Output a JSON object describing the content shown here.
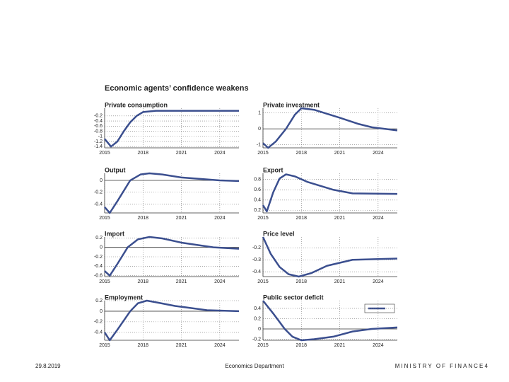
{
  "header": {
    "title": "Economic agents’ confidence weakens"
  },
  "footer": {
    "date": "29.8.2019",
    "department": "Economics Department",
    "organization": "MINISTRY OF FINANCE",
    "page": "4"
  },
  "chart_data": [
    {
      "type": "line",
      "title": "Private consumption",
      "color": "#3b4f8f",
      "x": [
        2015,
        2015.5,
        2016,
        2016.5,
        2017,
        2017.5,
        2018,
        2019,
        2021,
        2024,
        2025.5
      ],
      "values": [
        -1.1,
        -1.4,
        -1.2,
        -0.8,
        -0.45,
        -0.2,
        -0.05,
        0,
        0,
        0,
        0
      ],
      "xlim": [
        2015,
        2025.5
      ],
      "xticks": [
        2015,
        2018,
        2021,
        2024
      ],
      "ylim": [
        -1.45,
        0.1
      ],
      "yticks": [
        -0.2,
        -0.4,
        -0.6,
        -0.8,
        -1,
        -1.2,
        -1.4
      ],
      "grid": true
    },
    {
      "type": "line",
      "title": "Private investment",
      "color": "#3b4f8f",
      "x": [
        2015,
        2015.4,
        2016,
        2016.8,
        2017.5,
        2018,
        2019,
        2021,
        2022.5,
        2023.5,
        2025.5
      ],
      "values": [
        -0.9,
        -1.2,
        -0.8,
        0,
        0.9,
        1.3,
        1.2,
        0.7,
        0.3,
        0.1,
        -0.1
      ],
      "xlim": [
        2015,
        2025.5
      ],
      "xticks": [
        2015,
        2018,
        2021,
        2024
      ],
      "ylim": [
        -1.2,
        1.3
      ],
      "yticks": [
        1,
        0,
        -1
      ],
      "grid": true
    },
    {
      "type": "line",
      "title": "Output",
      "color": "#3b4f8f",
      "x": [
        2015,
        2015.4,
        2016,
        2017,
        2017.8,
        2018.5,
        2019.5,
        2021,
        2024,
        2025.5
      ],
      "values": [
        -0.45,
        -0.55,
        -0.35,
        0,
        0.1,
        0.12,
        0.1,
        0.05,
        0,
        -0.01
      ],
      "xlim": [
        2015,
        2025.5
      ],
      "xticks": [
        2015,
        2018,
        2021,
        2024
      ],
      "ylim": [
        -0.55,
        0.12
      ],
      "yticks": [
        0,
        -0.2,
        -0.4
      ],
      "grid": true
    },
    {
      "type": "line",
      "title": "Export",
      "color": "#3b4f8f",
      "x": [
        2015,
        2015.3,
        2015.8,
        2016.3,
        2016.8,
        2017.5,
        2018.5,
        2020.5,
        2022,
        2025.5
      ],
      "values": [
        0.3,
        0.18,
        0.55,
        0.82,
        0.9,
        0.86,
        0.75,
        0.6,
        0.53,
        0.52
      ],
      "xlim": [
        2015,
        2025.5
      ],
      "xticks": [
        2015,
        2018,
        2021,
        2024
      ],
      "ylim": [
        0.15,
        0.92
      ],
      "yticks": [
        0.8,
        0.6,
        0.4,
        0.2
      ],
      "grid": true
    },
    {
      "type": "line",
      "title": "Import",
      "color": "#3b4f8f",
      "x": [
        2015,
        2015.4,
        2016,
        2016.8,
        2017.6,
        2018.5,
        2019.5,
        2021,
        2023.5,
        2025.5
      ],
      "values": [
        -0.5,
        -0.6,
        -0.35,
        0,
        0.17,
        0.22,
        0.19,
        0.1,
        0,
        -0.03
      ],
      "xlim": [
        2015,
        2025.5
      ],
      "xticks": [
        2015,
        2018,
        2021,
        2024
      ],
      "ylim": [
        -0.62,
        0.22
      ],
      "yticks": [
        0.2,
        0,
        -0.2,
        -0.4,
        -0.6
      ],
      "grid": true
    },
    {
      "type": "line",
      "title": "Price level",
      "color": "#3b4f8f",
      "x": [
        2015,
        2015.6,
        2016.3,
        2017,
        2017.8,
        2018.8,
        2020,
        2022,
        2025.5
      ],
      "values": [
        -0.11,
        -0.25,
        -0.36,
        -0.42,
        -0.44,
        -0.41,
        -0.35,
        -0.3,
        -0.29
      ],
      "xlim": [
        2015,
        2025.5
      ],
      "xticks": [
        2015,
        2018,
        2021,
        2024
      ],
      "ylim": [
        -0.44,
        -0.11
      ],
      "yticks": [
        -0.2,
        -0.3,
        -0.4
      ],
      "grid": true
    },
    {
      "type": "line",
      "title": "Employment",
      "color": "#3b4f8f",
      "x": [
        2015,
        2015.4,
        2016,
        2017,
        2017.6,
        2018.3,
        2019,
        2020.5,
        2023,
        2025.5
      ],
      "values": [
        -0.4,
        -0.55,
        -0.35,
        0,
        0.15,
        0.2,
        0.17,
        0.1,
        0.02,
        0
      ],
      "xlim": [
        2015,
        2025.5
      ],
      "xticks": [
        2015,
        2018,
        2021,
        2024
      ],
      "ylim": [
        -0.55,
        0.2
      ],
      "yticks": [
        0.2,
        0,
        -0.2,
        -0.4
      ],
      "grid": true
    },
    {
      "type": "line",
      "title": "Public sector deficit",
      "color": "#3b4f8f",
      "x": [
        2015,
        2015.8,
        2016.7,
        2017.3,
        2018,
        2019,
        2020.5,
        2022,
        2023.5,
        2025.5
      ],
      "values": [
        0.55,
        0.3,
        0,
        -0.15,
        -0.22,
        -0.2,
        -0.15,
        -0.05,
        0,
        0.03
      ],
      "xlim": [
        2015,
        2025.5
      ],
      "xticks": [
        2015,
        2018,
        2021,
        2024
      ],
      "ylim": [
        -0.22,
        0.55
      ],
      "yticks": [
        0.4,
        0.2,
        0,
        -0.2
      ],
      "grid": true
    }
  ]
}
